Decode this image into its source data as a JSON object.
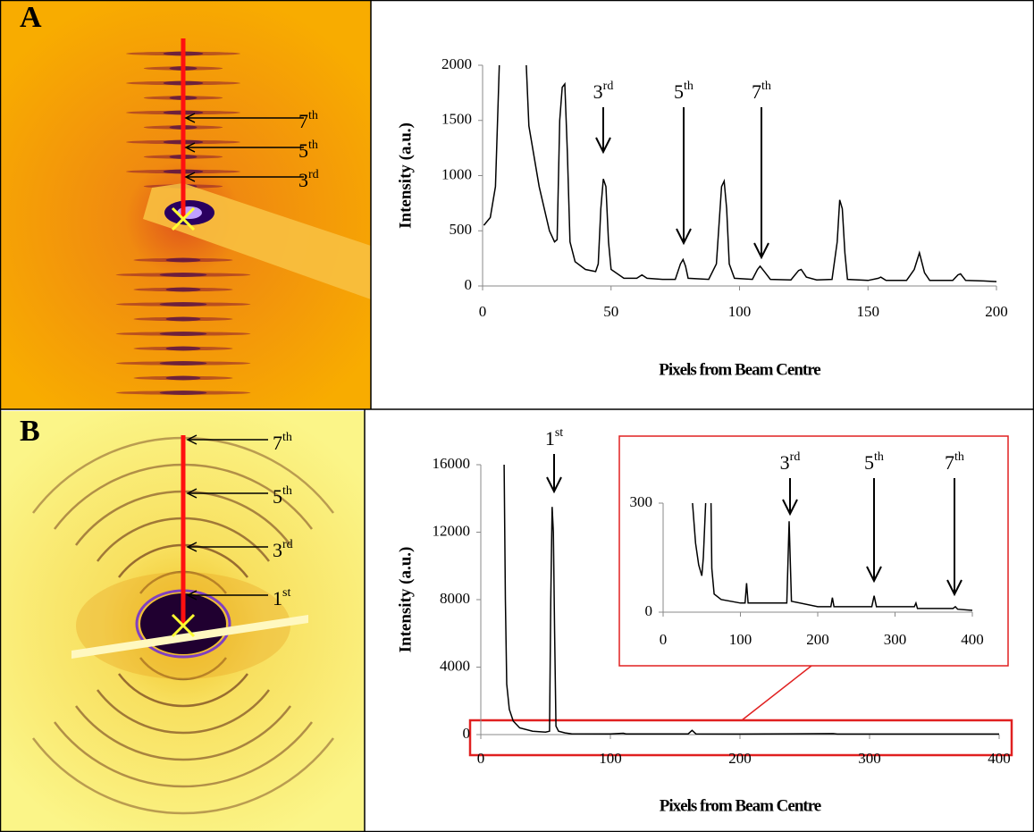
{
  "panels": [
    {
      "label": "A",
      "image_labels": [
        {
          "n": "7",
          "s": "th"
        },
        {
          "n": "5",
          "s": "th"
        },
        {
          "n": "3",
          "s": "rd"
        }
      ]
    },
    {
      "label": "B",
      "image_labels": [
        {
          "n": "7",
          "s": "th"
        },
        {
          "n": "5",
          "s": "th"
        },
        {
          "n": "3",
          "s": "rd"
        },
        {
          "n": "1",
          "s": "st"
        }
      ]
    }
  ],
  "chart_data": [
    {
      "type": "line",
      "ylabel": "Intensity (a.u.)",
      "xlabel": "Pixels from Beam Centre",
      "color": "#000000",
      "xlim": [
        0,
        200
      ],
      "ylim": [
        0,
        2000
      ],
      "xticks": [
        0,
        50,
        100,
        150,
        200
      ],
      "yticks": [
        0,
        500,
        1000,
        1500,
        2000
      ],
      "x": [
        0.5,
        3,
        5,
        6.5,
        12,
        17,
        18,
        22,
        26,
        28,
        29,
        30,
        31,
        32,
        33,
        34,
        36,
        40,
        44,
        45,
        46,
        47,
        48,
        49,
        50,
        55,
        60,
        62,
        64,
        70,
        75,
        77,
        78,
        79,
        80,
        88,
        91,
        93,
        94,
        95,
        96,
        98,
        105,
        107,
        108,
        110,
        112,
        120,
        123,
        124,
        126,
        130,
        136,
        138,
        139,
        140,
        141,
        142,
        150,
        154,
        155,
        157,
        165,
        168,
        170,
        172,
        174,
        183,
        185,
        186,
        188,
        195,
        200
      ],
      "values": [
        550,
        620,
        900,
        2000,
        null,
        2000,
        1450,
        900,
        500,
        400,
        420,
        1500,
        1800,
        1830,
        1200,
        400,
        220,
        150,
        130,
        200,
        700,
        970,
        900,
        400,
        150,
        70,
        70,
        100,
        70,
        60,
        60,
        200,
        240,
        180,
        70,
        60,
        200,
        900,
        950,
        700,
        200,
        70,
        60,
        150,
        180,
        120,
        60,
        55,
        140,
        150,
        80,
        55,
        60,
        400,
        780,
        700,
        300,
        60,
        50,
        70,
        80,
        50,
        50,
        150,
        300,
        120,
        50,
        50,
        100,
        110,
        50,
        45,
        40
      ],
      "annotations": [
        {
          "n": "3",
          "s": "rd"
        },
        {
          "n": "5",
          "s": "th"
        },
        {
          "n": "7",
          "s": "th"
        }
      ]
    },
    {
      "type": "line",
      "ylabel": "Intensity (a.u.)",
      "xlabel": "Pixels from Beam Centre",
      "color": "#000000",
      "xlim": [
        0,
        400
      ],
      "ylim": [
        0,
        16000
      ],
      "xticks": [
        0,
        100,
        200,
        300,
        400
      ],
      "yticks": [
        0,
        4000,
        8000,
        12000,
        16000
      ],
      "x": [
        18,
        19,
        20,
        22,
        25,
        30,
        40,
        50,
        53,
        54,
        55,
        56,
        57,
        58,
        60,
        65,
        70,
        100,
        110,
        112,
        160,
        163,
        166,
        200,
        272,
        275,
        400
      ],
      "values": [
        16000,
        8000,
        3000,
        1500,
        800,
        400,
        200,
        150,
        200,
        8000,
        13500,
        12000,
        6000,
        500,
        200,
        100,
        50,
        40,
        80,
        40,
        40,
        250,
        40,
        30,
        60,
        30,
        30
      ],
      "annotations": [
        {
          "n": "1",
          "s": "st"
        }
      ]
    },
    {
      "type": "line",
      "color": "#000000",
      "xlim": [
        0,
        400
      ],
      "ylim": [
        0,
        300
      ],
      "xticks": [
        0,
        100,
        200,
        300,
        400
      ],
      "yticks": [
        0,
        300
      ],
      "x": [
        38,
        42,
        46,
        50,
        52,
        55,
        58,
        62,
        63,
        66,
        75,
        100,
        106,
        108,
        110,
        160,
        163,
        166,
        200,
        217,
        219,
        221,
        270,
        273,
        276,
        325,
        327,
        329,
        375,
        378,
        381,
        400
      ],
      "values": [
        300,
        190,
        130,
        100,
        150,
        300,
        null,
        300,
        120,
        50,
        35,
        25,
        25,
        80,
        25,
        25,
        250,
        30,
        15,
        15,
        40,
        15,
        15,
        45,
        15,
        15,
        25,
        10,
        10,
        15,
        8,
        5
      ],
      "annotations": [
        {
          "n": "3",
          "s": "rd"
        },
        {
          "n": "5",
          "s": "th"
        },
        {
          "n": "7",
          "s": "th"
        }
      ]
    }
  ]
}
